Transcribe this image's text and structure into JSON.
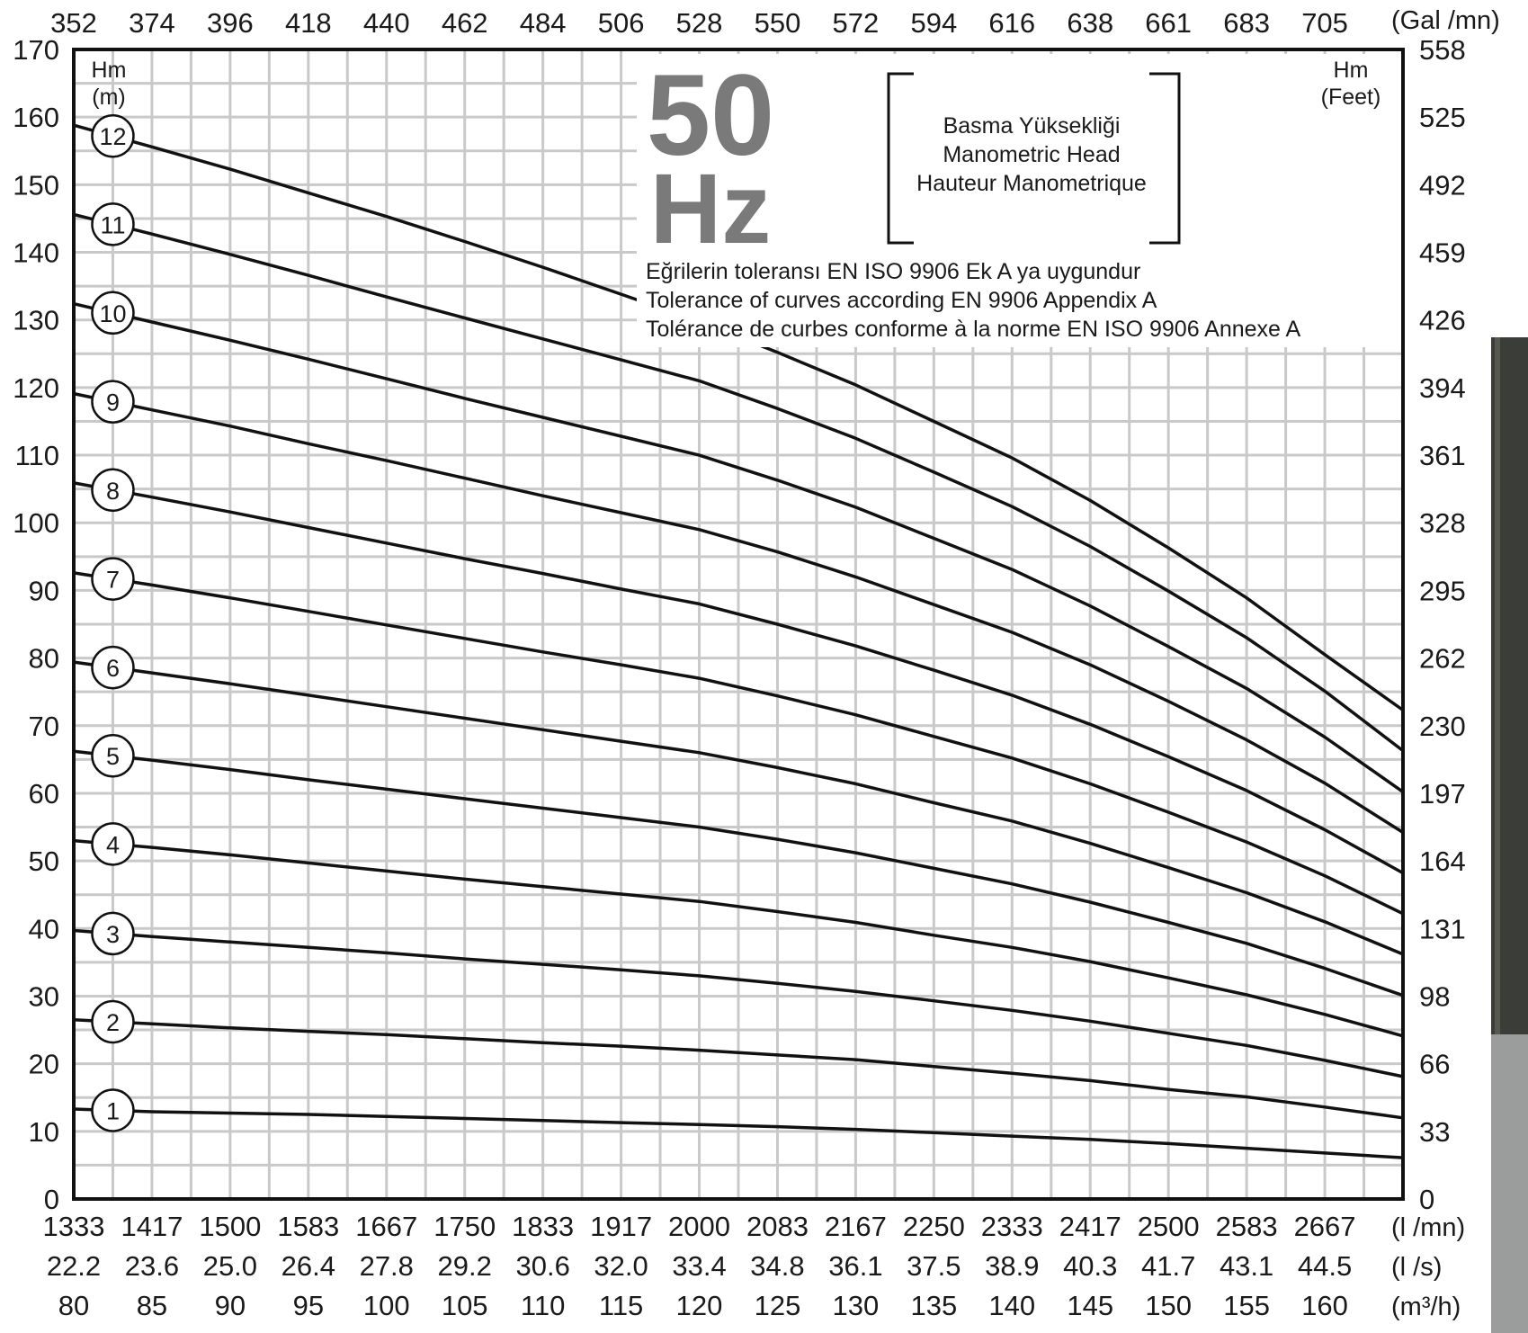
{
  "chart_data": {
    "type": "line",
    "frequency": {
      "value": "50",
      "unit": "Hz"
    },
    "head_box": [
      "Basma Yüksekliği",
      "Manometric Head",
      "Hauteur Manometrique"
    ],
    "tolerance_notes": [
      "Eğrilerin toleransı EN ISO 9906 Ek A ya uygundur",
      "Tolerance of curves according EN 9906 Appendix A",
      "Tolérance de curbes conforme à la norme EN ISO 9906 Annexe A"
    ],
    "left_axis": {
      "label_line1": "Hm",
      "label_line2": "(m)",
      "ylim": [
        0,
        170
      ],
      "ticks": [
        "0",
        "10",
        "20",
        "30",
        "40",
        "50",
        "60",
        "70",
        "80",
        "90",
        "100",
        "110",
        "120",
        "130",
        "140",
        "150",
        "160",
        "170"
      ]
    },
    "right_axis": {
      "label_line1": "Hm",
      "label_line2": "(Feet)",
      "ticks": [
        "0",
        "33",
        "66",
        "98",
        "131",
        "164",
        "197",
        "230",
        "262",
        "295",
        "328",
        "361",
        "394",
        "426",
        "459",
        "492",
        "525",
        "558"
      ]
    },
    "top_axis": {
      "unit": "(Gal /mn)",
      "ticks": [
        "352",
        "374",
        "396",
        "418",
        "440",
        "462",
        "484",
        "506",
        "528",
        "550",
        "572",
        "594",
        "616",
        "638",
        "661",
        "683",
        "705"
      ]
    },
    "bottom_axes": [
      {
        "unit": "(l /mn)",
        "ticks": [
          "1333",
          "1417",
          "1500",
          "1583",
          "1667",
          "1750",
          "1833",
          "1917",
          "2000",
          "2083",
          "2167",
          "2250",
          "2333",
          "2417",
          "2500",
          "2583",
          "2667"
        ]
      },
      {
        "unit": "(l /s)",
        "ticks": [
          "22.2",
          "23.6",
          "25.0",
          "26.4",
          "27.8",
          "29.2",
          "30.6",
          "32.0",
          "33.4",
          "34.8",
          "36.1",
          "37.5",
          "38.9",
          "40.3",
          "41.7",
          "43.1",
          "44.5"
        ]
      },
      {
        "unit": "(m³/h)",
        "ticks": [
          "80",
          "85",
          "90",
          "95",
          "100",
          "105",
          "110",
          "115",
          "120",
          "125",
          "130",
          "135",
          "140",
          "145",
          "150",
          "155",
          "160"
        ]
      }
    ],
    "x_unit": "m3/h",
    "xlim": [
      80,
      165
    ],
    "x": [
      80,
      85,
      90,
      95,
      100,
      105,
      110,
      115,
      120,
      125,
      130,
      135,
      140,
      145,
      150,
      155,
      160,
      165
    ],
    "series": [
      {
        "name": "1",
        "values": [
          13.3,
          12.9,
          12.7,
          12.5,
          12.2,
          11.9,
          11.6,
          11.3,
          11.0,
          10.7,
          10.3,
          9.8,
          9.3,
          8.8,
          8.2,
          7.5,
          6.8,
          6.1
        ]
      },
      {
        "name": "2",
        "values": [
          26.5,
          25.9,
          25.3,
          24.8,
          24.3,
          23.7,
          23.1,
          22.6,
          22.0,
          21.3,
          20.6,
          19.6,
          18.6,
          17.5,
          16.2,
          15.1,
          13.6,
          12.0
        ]
      },
      {
        "name": "3",
        "values": [
          39.7,
          38.8,
          38.0,
          37.2,
          36.4,
          35.5,
          34.7,
          33.9,
          33.0,
          31.9,
          30.7,
          29.3,
          27.9,
          26.3,
          24.5,
          22.7,
          20.5,
          18.1
        ]
      },
      {
        "name": "4",
        "values": [
          53.0,
          52.0,
          50.9,
          49.7,
          48.5,
          47.3,
          46.2,
          45.1,
          44.0,
          42.5,
          40.9,
          39.0,
          37.2,
          35.1,
          32.7,
          30.2,
          27.3,
          24.1
        ]
      },
      {
        "name": "5",
        "values": [
          66.2,
          64.9,
          63.5,
          62.0,
          60.6,
          59.2,
          57.8,
          56.4,
          55.0,
          53.2,
          51.2,
          48.9,
          46.6,
          43.9,
          40.9,
          37.8,
          34.1,
          30.1
        ]
      },
      {
        "name": "6",
        "values": [
          79.4,
          77.8,
          76.2,
          74.5,
          72.8,
          71.1,
          69.4,
          67.7,
          66.0,
          63.8,
          61.4,
          58.6,
          55.9,
          52.6,
          49.0,
          45.3,
          41.0,
          36.2
        ]
      },
      {
        "name": "7",
        "values": [
          92.6,
          90.8,
          88.9,
          86.9,
          84.9,
          82.9,
          80.9,
          79.0,
          77.0,
          74.4,
          71.6,
          68.4,
          65.2,
          61.4,
          57.2,
          52.8,
          47.8,
          42.2
        ]
      },
      {
        "name": "8",
        "values": [
          105.9,
          103.8,
          101.6,
          99.3,
          97.0,
          94.7,
          92.5,
          90.2,
          88.0,
          85.0,
          81.8,
          78.2,
          74.5,
          70.2,
          65.4,
          60.4,
          54.6,
          48.2
        ]
      },
      {
        "name": "9",
        "values": [
          119.1,
          116.7,
          114.3,
          111.7,
          109.2,
          106.6,
          104.0,
          101.5,
          99.0,
          95.7,
          92.0,
          87.9,
          83.8,
          79.0,
          73.6,
          67.9,
          61.5,
          54.2
        ]
      },
      {
        "name": "10",
        "values": [
          132.4,
          129.7,
          127.0,
          124.2,
          121.3,
          118.4,
          115.6,
          112.8,
          110.0,
          106.3,
          102.3,
          97.7,
          93.1,
          87.7,
          81.7,
          75.5,
          68.3,
          60.2
        ]
      },
      {
        "name": "11",
        "values": [
          145.6,
          142.7,
          139.7,
          136.6,
          133.4,
          130.3,
          127.2,
          124.1,
          121.0,
          116.9,
          112.5,
          107.5,
          102.4,
          96.5,
          89.9,
          83.0,
          75.1,
          66.3
        ]
      },
      {
        "name": "12",
        "values": [
          158.8,
          155.6,
          152.3,
          148.8,
          145.3,
          141.6,
          137.8,
          133.8,
          129.8,
          125.2,
          120.4,
          115.0,
          109.6,
          103.3,
          96.3,
          88.9,
          80.5,
          72.3
        ]
      }
    ],
    "grid": true
  }
}
